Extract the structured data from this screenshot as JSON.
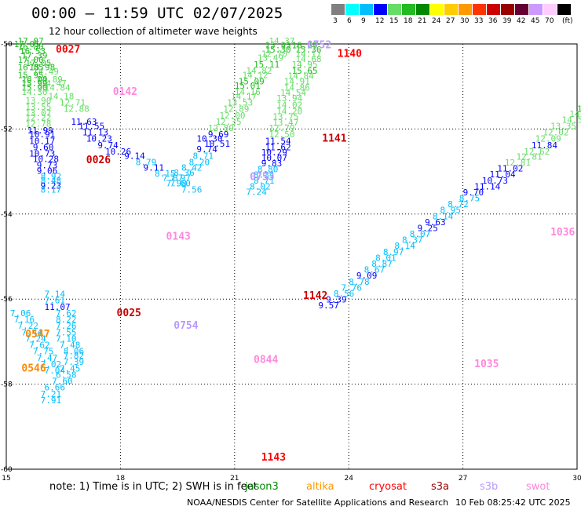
{
  "title": "00:00 — 11:59 UTC 02/07/2025",
  "subtitle": "12 hour collection of altimeter wave heights",
  "legend": {
    "unit": "(ft)",
    "bins": [
      {
        "label": "3",
        "color": "#808080"
      },
      {
        "label": "6",
        "color": "#00ffff"
      },
      {
        "label": "9",
        "color": "#00bfff"
      },
      {
        "label": "12",
        "color": "#0000ff"
      },
      {
        "label": "15",
        "color": "#66dd66"
      },
      {
        "label": "18",
        "color": "#22bb22"
      },
      {
        "label": "21",
        "color": "#008800"
      },
      {
        "label": "24",
        "color": "#ffff00"
      },
      {
        "label": "27",
        "color": "#ffcc00"
      },
      {
        "label": "30",
        "color": "#ff9900"
      },
      {
        "label": "33",
        "color": "#ff3300"
      },
      {
        "label": "36",
        "color": "#cc0000"
      },
      {
        "label": "39",
        "color": "#990000"
      },
      {
        "label": "42",
        "color": "#660033"
      },
      {
        "label": "45",
        "color": "#cc99ff"
      },
      {
        "label": "70",
        "color": "#ffccff"
      },
      {
        "label": "",
        "color": "#000000"
      }
    ]
  },
  "axes": {
    "x_ticks": [
      "15",
      "18",
      "21",
      "24",
      "27",
      "30"
    ],
    "y_ticks": [
      "-50",
      "-52",
      "-54",
      "-56",
      "-58",
      "-60"
    ]
  },
  "passes": [
    {
      "time": "0027",
      "color": "#ff0000",
      "lon": 16.3,
      "lat": -50.2
    },
    {
      "time": "0142",
      "color": "#ff88dd",
      "lon": 17.8,
      "lat": -51.2
    },
    {
      "time": "0026",
      "color": "#cc0000",
      "lon": 17.1,
      "lat": -52.8
    },
    {
      "time": "0143",
      "color": "#ff88dd",
      "lon": 19.2,
      "lat": -54.6
    },
    {
      "time": "0025",
      "color": "#cc0000",
      "lon": 17.9,
      "lat": -56.4
    },
    {
      "time": "0754",
      "color": "#bb99ff",
      "lon": 19.4,
      "lat": -56.7
    },
    {
      "time": "0547",
      "color": "#ff8800",
      "lon": 15.5,
      "lat": -56.9
    },
    {
      "time": "0546",
      "color": "#ff8800",
      "lon": 15.4,
      "lat": -57.7
    },
    {
      "time": "0753",
      "color": "#bb99ff",
      "lon": 21.4,
      "lat": -53.2
    },
    {
      "time": "0752",
      "color": "#bb99ff",
      "lon": 22.9,
      "lat": -50.1
    },
    {
      "time": "1140",
      "color": "#ff0000",
      "lon": 23.7,
      "lat": -50.3
    },
    {
      "time": "1141",
      "color": "#cc0000",
      "lon": 23.3,
      "lat": -52.3
    },
    {
      "time": "1142",
      "color": "#cc0000",
      "lon": 22.8,
      "lat": -56.0
    },
    {
      "time": "0844",
      "color": "#ff88dd",
      "lon": 21.5,
      "lat": -57.5
    },
    {
      "time": "1143",
      "color": "#ff0000",
      "lon": 21.7,
      "lat": -59.8
    },
    {
      "time": "1035",
      "color": "#ff88dd",
      "lon": 27.3,
      "lat": -57.6
    },
    {
      "time": "1036",
      "color": "#ff88dd",
      "lon": 29.3,
      "lat": -54.5
    }
  ],
  "tracks": [
    {
      "name": "track-1",
      "points": [
        {
          "v": "17.07",
          "lon": 15.3,
          "lat": -50.0
        },
        {
          "v": "17.05",
          "lon": 15.2,
          "lat": -50.07
        },
        {
          "v": "16.80",
          "lon": 15.3,
          "lat": -50.14
        },
        {
          "v": "16.53",
          "lon": 15.35,
          "lat": -50.24
        },
        {
          "v": "17.39",
          "lon": 15.4,
          "lat": -50.34
        },
        {
          "v": "17.00",
          "lon": 15.3,
          "lat": -50.44
        },
        {
          "v": "17.05",
          "lon": 15.5,
          "lat": -50.52
        },
        {
          "v": "16.85",
          "lon": 15.3,
          "lat": -50.62
        },
        {
          "v": "15.98",
          "lon": 15.6,
          "lat": -50.62
        },
        {
          "v": "14.49",
          "lon": 15.7,
          "lat": -50.72
        },
        {
          "v": "15.95",
          "lon": 15.3,
          "lat": -50.8
        },
        {
          "v": "14.89",
          "lon": 15.8,
          "lat": -50.9
        },
        {
          "v": "16.00",
          "lon": 15.4,
          "lat": -50.9
        },
        {
          "v": "14.47",
          "lon": 15.9,
          "lat": -51.0
        },
        {
          "v": "15.99",
          "lon": 15.4,
          "lat": -51.0
        },
        {
          "v": "15.90",
          "lon": 15.4,
          "lat": -51.1
        },
        {
          "v": "14.84",
          "lon": 16.0,
          "lat": -51.1
        },
        {
          "v": "14.30",
          "lon": 15.4,
          "lat": -51.2
        },
        {
          "v": "14.18",
          "lon": 16.1,
          "lat": -51.3
        },
        {
          "v": "13.90",
          "lon": 15.5,
          "lat": -51.4
        },
        {
          "v": "12.71",
          "lon": 16.4,
          "lat": -51.45
        },
        {
          "v": "13.55",
          "lon": 15.5,
          "lat": -51.55
        },
        {
          "v": "12.88",
          "lon": 16.5,
          "lat": -51.6
        },
        {
          "v": "13.07",
          "lon": 15.5,
          "lat": -51.7
        },
        {
          "v": "12.22",
          "lon": 15.5,
          "lat": -51.8
        },
        {
          "v": "12.78",
          "lon": 15.5,
          "lat": -51.95
        },
        {
          "v": "11.99",
          "lon": 15.55,
          "lat": -52.1
        },
        {
          "v": "11.63",
          "lon": 16.7,
          "lat": -51.9
        },
        {
          "v": "11.55",
          "lon": 16.9,
          "lat": -52.0
        },
        {
          "v": "11.13",
          "lon": 17.0,
          "lat": -52.15
        },
        {
          "v": "10.91",
          "lon": 15.6,
          "lat": -52.2
        },
        {
          "v": "10.23",
          "lon": 17.1,
          "lat": -52.3
        },
        {
          "v": "10.17",
          "lon": 15.6,
          "lat": -52.35
        },
        {
          "v": "9.74",
          "lon": 17.4,
          "lat": -52.45
        },
        {
          "v": "9.60",
          "lon": 15.7,
          "lat": -52.5
        },
        {
          "v": "10.26",
          "lon": 17.6,
          "lat": -52.6
        },
        {
          "v": "10.73",
          "lon": 15.6,
          "lat": -52.65
        },
        {
          "v": "9.14",
          "lon": 18.1,
          "lat": -52.7
        },
        {
          "v": "10.28",
          "lon": 15.7,
          "lat": -52.78
        },
        {
          "v": "8.79",
          "lon": 18.4,
          "lat": -52.85
        },
        {
          "v": "9.73",
          "lon": 15.8,
          "lat": -52.92
        },
        {
          "v": "9.11",
          "lon": 18.6,
          "lat": -52.98
        },
        {
          "v": "9.06",
          "lon": 15.8,
          "lat": -53.05
        },
        {
          "v": "8.15",
          "lon": 18.9,
          "lat": -53.12
        },
        {
          "v": "8.92",
          "lon": 15.9,
          "lat": -53.18
        },
        {
          "v": "7.87",
          "lon": 19.1,
          "lat": -53.22
        },
        {
          "v": "8.48",
          "lon": 15.9,
          "lat": -53.28
        },
        {
          "v": "7.98",
          "lon": 19.2,
          "lat": -53.35
        },
        {
          "v": "9.23",
          "lon": 15.9,
          "lat": -53.4
        },
        {
          "v": "8.17",
          "lon": 15.9,
          "lat": -53.5
        }
      ]
    },
    {
      "name": "track-2",
      "points": [
        {
          "v": "7.14",
          "lon": 16.0,
          "lat": -55.95
        },
        {
          "v": "7.61",
          "lon": 16.0,
          "lat": -56.1
        },
        {
          "v": "11.07",
          "lon": 16.0,
          "lat": -56.25
        },
        {
          "v": "7.62",
          "lon": 16.3,
          "lat": -56.4
        },
        {
          "v": "8.22",
          "lon": 16.3,
          "lat": -56.55
        },
        {
          "v": "7.26",
          "lon": 16.3,
          "lat": -56.7
        },
        {
          "v": "7.55",
          "lon": 16.3,
          "lat": -56.85
        },
        {
          "v": "7.10",
          "lon": 16.3,
          "lat": -57.0
        },
        {
          "v": "7.48",
          "lon": 16.4,
          "lat": -57.15
        },
        {
          "v": "8.06",
          "lon": 16.5,
          "lat": -57.3
        },
        {
          "v": "7.82",
          "lon": 16.5,
          "lat": -57.4
        },
        {
          "v": "7.39",
          "lon": 16.5,
          "lat": -57.55
        },
        {
          "v": "7.45",
          "lon": 16.4,
          "lat": -57.7
        },
        {
          "v": "6.58",
          "lon": 16.3,
          "lat": -57.85
        },
        {
          "v": "7.60",
          "lon": 16.2,
          "lat": -58.0
        },
        {
          "v": "6.66",
          "lon": 16.0,
          "lat": -58.15
        },
        {
          "v": "7.21",
          "lon": 15.9,
          "lat": -58.3
        },
        {
          "v": "7.91",
          "lon": 15.9,
          "lat": -58.45
        }
      ]
    },
    {
      "name": "track-3",
      "points": [
        {
          "v": "7.06",
          "lon": 15.1,
          "lat": -56.4
        },
        {
          "v": "7.16",
          "lon": 15.2,
          "lat": -56.55
        },
        {
          "v": "7.22",
          "lon": 15.3,
          "lat": -56.7
        },
        {
          "v": "7.44",
          "lon": 15.4,
          "lat": -56.85
        },
        {
          "v": "7.24",
          "lon": 15.5,
          "lat": -57.0
        },
        {
          "v": "7.62",
          "lon": 15.6,
          "lat": -57.15
        },
        {
          "v": "7.75",
          "lon": 15.7,
          "lat": -57.3
        },
        {
          "v": "7.47",
          "lon": 15.8,
          "lat": -57.45
        },
        {
          "v": "7.02",
          "lon": 15.9,
          "lat": -57.6
        },
        {
          "v": "7.04",
          "lon": 16.0,
          "lat": -57.75
        }
      ]
    },
    {
      "name": "track-4",
      "points": [
        {
          "v": "15.95",
          "lon": 21.8,
          "lat": -50.1
        },
        {
          "v": "15.30",
          "lon": 21.8,
          "lat": -50.2
        },
        {
          "v": "12.70",
          "lon": 21.7,
          "lat": -50.3
        },
        {
          "v": "13.49",
          "lon": 21.6,
          "lat": -50.4
        },
        {
          "v": "15.11",
          "lon": 21.5,
          "lat": -50.55
        },
        {
          "v": "14.82",
          "lon": 21.3,
          "lat": -50.7
        },
        {
          "v": "14.12",
          "lon": 21.2,
          "lat": -50.8
        },
        {
          "v": "15.09",
          "lon": 21.1,
          "lat": -50.95
        },
        {
          "v": "15.01",
          "lon": 21.0,
          "lat": -51.05
        },
        {
          "v": "14.16",
          "lon": 21.0,
          "lat": -51.2
        },
        {
          "v": "14.17",
          "lon": 20.9,
          "lat": -51.3
        },
        {
          "v": "13.53",
          "lon": 20.8,
          "lat": -51.45
        },
        {
          "v": "12.89",
          "lon": 20.7,
          "lat": -51.6
        },
        {
          "v": "12.00",
          "lon": 20.6,
          "lat": -51.75
        },
        {
          "v": "12.35",
          "lon": 20.5,
          "lat": -51.9
        },
        {
          "v": "12.89",
          "lon": 20.3,
          "lat": -52.05
        },
        {
          "v": "9.69",
          "lon": 20.3,
          "lat": -52.2
        },
        {
          "v": "10.30",
          "lon": 20.0,
          "lat": -52.3
        },
        {
          "v": "10.51",
          "lon": 20.2,
          "lat": -52.42
        },
        {
          "v": "9.74",
          "lon": 20.0,
          "lat": -52.55
        },
        {
          "v": "8.71",
          "lon": 19.9,
          "lat": -52.7
        },
        {
          "v": "8.20",
          "lon": 19.8,
          "lat": -52.85
        },
        {
          "v": "8.42",
          "lon": 19.6,
          "lat": -52.98
        },
        {
          "v": "8.36",
          "lon": 19.4,
          "lat": -53.1
        },
        {
          "v": "7.97",
          "lon": 19.3,
          "lat": -53.22
        },
        {
          "v": "7.60",
          "lon": 19.3,
          "lat": -53.35
        },
        {
          "v": "7.56",
          "lon": 19.6,
          "lat": -53.5
        }
      ]
    },
    {
      "name": "track-5",
      "points": [
        {
          "v": "14.37",
          "lon": 21.9,
          "lat": -50.0
        },
        {
          "v": "16.29",
          "lon": 22.5,
          "lat": -50.1
        },
        {
          "v": "15.36",
          "lon": 22.6,
          "lat": -50.2
        },
        {
          "v": "14.17",
          "lon": 22.6,
          "lat": -50.3
        },
        {
          "v": "14.68",
          "lon": 22.6,
          "lat": -50.42
        },
        {
          "v": "14.95",
          "lon": 22.5,
          "lat": -50.55
        },
        {
          "v": "15.65",
          "lon": 22.5,
          "lat": -50.7
        },
        {
          "v": "14.84",
          "lon": 22.4,
          "lat": -50.82
        },
        {
          "v": "14.91",
          "lon": 22.3,
          "lat": -50.95
        },
        {
          "v": "14.86",
          "lon": 22.3,
          "lat": -51.1
        },
        {
          "v": "14.54",
          "lon": 22.2,
          "lat": -51.22
        },
        {
          "v": "13.94",
          "lon": 22.1,
          "lat": -51.35
        },
        {
          "v": "14.02",
          "lon": 22.1,
          "lat": -51.5
        },
        {
          "v": "14.20",
          "lon": 22.1,
          "lat": -51.65
        },
        {
          "v": "13.75",
          "lon": 22.0,
          "lat": -51.78
        },
        {
          "v": "13.47",
          "lon": 22.0,
          "lat": -51.92
        },
        {
          "v": "12.79",
          "lon": 21.9,
          "lat": -52.05
        },
        {
          "v": "12.50",
          "lon": 21.9,
          "lat": -52.2
        },
        {
          "v": "11.54",
          "lon": 21.8,
          "lat": -52.35
        },
        {
          "v": "11.62",
          "lon": 21.8,
          "lat": -52.5
        },
        {
          "v": "10.29",
          "lon": 21.7,
          "lat": -52.62
        },
        {
          "v": "10.07",
          "lon": 21.7,
          "lat": -52.75
        },
        {
          "v": "9.83",
          "lon": 21.7,
          "lat": -52.88
        },
        {
          "v": "8.80",
          "lon": 21.6,
          "lat": -53.02
        },
        {
          "v": "8.34",
          "lon": 21.5,
          "lat": -53.15
        },
        {
          "v": "8.71",
          "lon": 21.5,
          "lat": -53.28
        },
        {
          "v": "8.02",
          "lon": 21.4,
          "lat": -53.42
        },
        {
          "v": "7.24",
          "lon": 21.3,
          "lat": -53.55
        }
      ]
    },
    {
      "name": "track-6",
      "points": [
        {
          "v": "15",
          "lon": 30.0,
          "lat": -51.6
        },
        {
          "v": "14.80",
          "lon": 29.8,
          "lat": -51.72
        },
        {
          "v": "14.55",
          "lon": 29.6,
          "lat": -51.85
        },
        {
          "v": "13.35",
          "lon": 29.3,
          "lat": -52.0
        },
        {
          "v": "12.02",
          "lon": 29.1,
          "lat": -52.15
        },
        {
          "v": "12.09",
          "lon": 28.9,
          "lat": -52.3
        },
        {
          "v": "11.84",
          "lon": 28.8,
          "lat": -52.45
        },
        {
          "v": "12.62",
          "lon": 28.6,
          "lat": -52.6
        },
        {
          "v": "12.81",
          "lon": 28.4,
          "lat": -52.72
        },
        {
          "v": "12.81",
          "lon": 28.1,
          "lat": -52.86
        },
        {
          "v": "11.02",
          "lon": 27.9,
          "lat": -53.0
        },
        {
          "v": "11.04",
          "lon": 27.7,
          "lat": -53.14
        },
        {
          "v": "10.73",
          "lon": 27.5,
          "lat": -53.28
        },
        {
          "v": "11.14",
          "lon": 27.3,
          "lat": -53.42
        },
        {
          "v": "9.70",
          "lon": 27.0,
          "lat": -53.56
        },
        {
          "v": "8.75",
          "lon": 26.9,
          "lat": -53.7
        },
        {
          "v": "8.72",
          "lon": 26.6,
          "lat": -53.84
        },
        {
          "v": "8.95",
          "lon": 26.4,
          "lat": -53.98
        },
        {
          "v": "8.14",
          "lon": 26.2,
          "lat": -54.12
        },
        {
          "v": "9.63",
          "lon": 26.0,
          "lat": -54.26
        },
        {
          "v": "9.25",
          "lon": 25.8,
          "lat": -54.4
        },
        {
          "v": "8.07",
          "lon": 25.6,
          "lat": -54.54
        },
        {
          "v": "8.37",
          "lon": 25.4,
          "lat": -54.68
        },
        {
          "v": "8.14",
          "lon": 25.2,
          "lat": -54.82
        },
        {
          "v": "8.97",
          "lon": 24.9,
          "lat": -54.96
        },
        {
          "v": "8.01",
          "lon": 24.7,
          "lat": -55.1
        },
        {
          "v": "8.87",
          "lon": 24.6,
          "lat": -55.24
        },
        {
          "v": "8.67",
          "lon": 24.4,
          "lat": -55.38
        },
        {
          "v": "9.09",
          "lon": 24.2,
          "lat": -55.52
        },
        {
          "v": "8.78",
          "lon": 24.0,
          "lat": -55.66
        },
        {
          "v": "7.76",
          "lon": 23.8,
          "lat": -55.8
        },
        {
          "v": "8.56",
          "lon": 23.6,
          "lat": -55.94
        },
        {
          "v": "9.39",
          "lon": 23.4,
          "lat": -56.08
        },
        {
          "v": "9.57",
          "lon": 23.2,
          "lat": -56.22
        }
      ]
    }
  ],
  "footer": {
    "note": "note:  1) Time is in UTC; 2) SWH is in feet",
    "satellites": [
      {
        "name": "jason3",
        "color": "#008800"
      },
      {
        "name": "altika",
        "color": "#ff9900"
      },
      {
        "name": "cryosat",
        "color": "#ff0000"
      },
      {
        "name": "s3a",
        "color": "#990000"
      },
      {
        "name": "s3b",
        "color": "#bb99ff"
      },
      {
        "name": "swot",
        "color": "#ff88dd"
      }
    ],
    "credit": "NOAA/NESDIS Center for Satellite Applications and Research",
    "timestamp": "10 Feb 08:25:42 UTC 2025"
  }
}
